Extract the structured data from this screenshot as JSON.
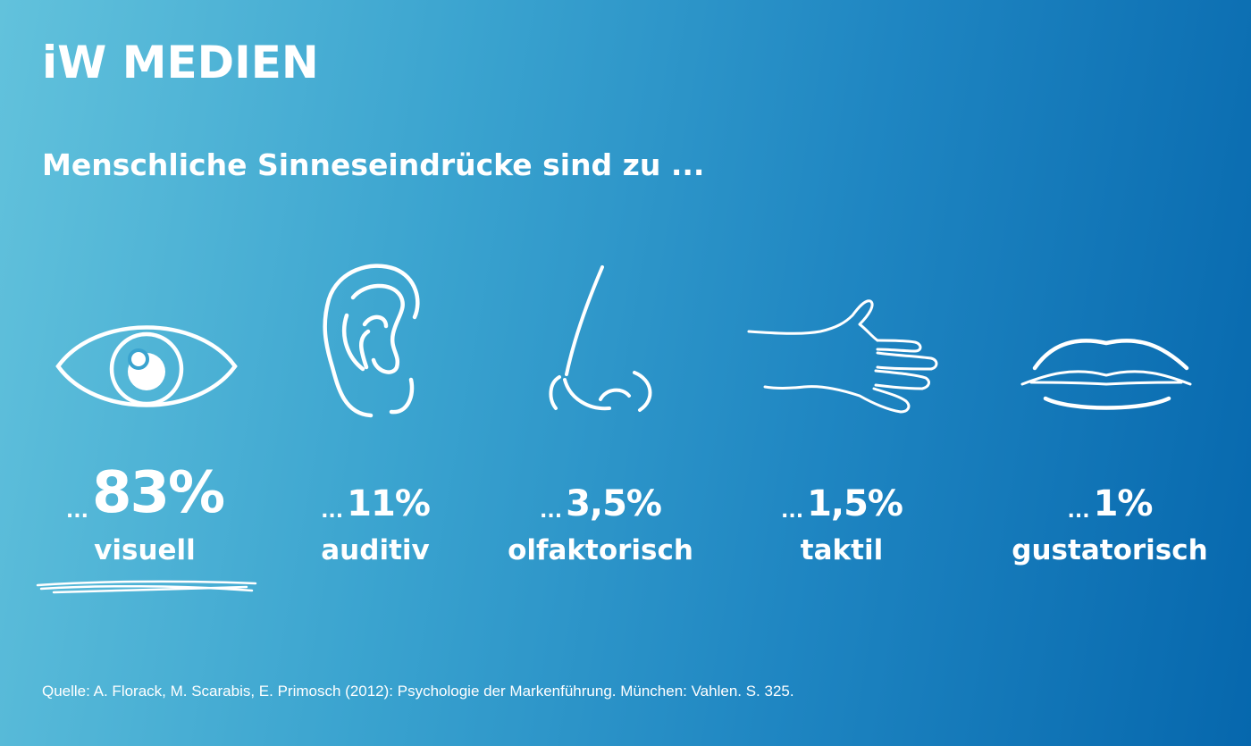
{
  "logo": {
    "text": "iW MEDIEN"
  },
  "headline": "Menschliche Sinneseindrücke sind zu ...",
  "senses": [
    {
      "prefix": "...",
      "value": "83%",
      "label": "visuell",
      "icon": "eye-icon",
      "share_percent": 83
    },
    {
      "prefix": "...",
      "value": "11%",
      "label": "auditiv",
      "icon": "ear-icon",
      "share_percent": 11
    },
    {
      "prefix": "...",
      "value": "3,5%",
      "label": "olfaktorisch",
      "icon": "nose-icon",
      "share_percent": 3.5
    },
    {
      "prefix": "...",
      "value": "1,5%",
      "label": "taktil",
      "icon": "hand-icon",
      "share_percent": 1.5
    },
    {
      "prefix": "...",
      "value": "1%",
      "label": "gustatorisch",
      "icon": "lips-icon",
      "share_percent": 1
    }
  ],
  "source": "Quelle: A. Florack, M. Scarabis, E. Primosch (2012): Psychologie der Markenführung. München: Vahlen. S. 325.",
  "colors": {
    "gradient_start": "#62c2dc",
    "gradient_end": "#0667ad",
    "text": "#ffffff"
  }
}
